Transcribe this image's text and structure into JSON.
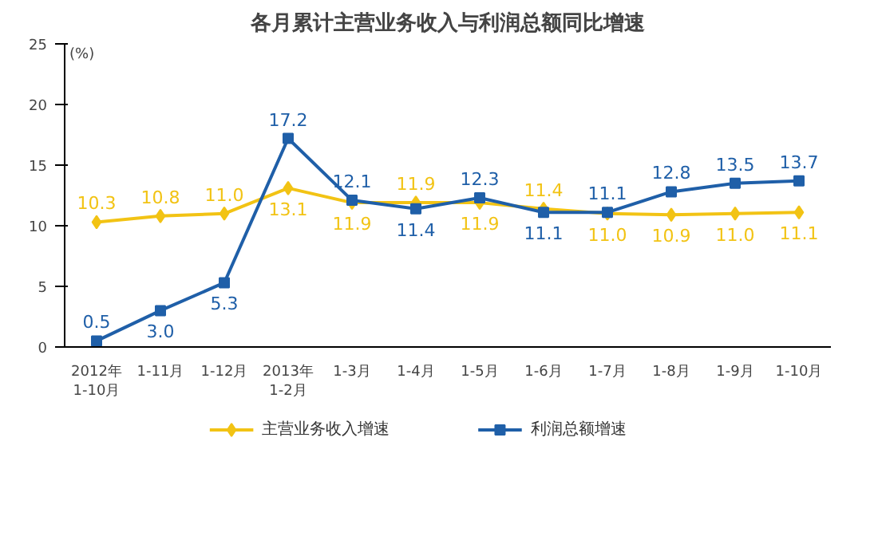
{
  "chart_data": {
    "type": "line",
    "title": "各月累计主营业务收入与利润总额同比增速",
    "ylabel": "(%)",
    "categories": [
      "2012年\n1-10月",
      "1-11月",
      "1-12月",
      "2013年\n1-2月",
      "1-3月",
      "1-4月",
      "1-5月",
      "1-6月",
      "1-7月",
      "1-8月",
      "1-9月",
      "1-10月"
    ],
    "series": [
      {
        "name": "主营业务收入增速",
        "color": "#f2c314",
        "marker": "diamond",
        "values": [
          10.3,
          10.8,
          11.0,
          13.1,
          11.9,
          11.9,
          11.9,
          11.4,
          11.0,
          10.9,
          11.0,
          11.1
        ],
        "value_labels": [
          "10.3",
          "10.8",
          "11.0",
          "13.1",
          "11.9",
          "11.9",
          "11.9",
          "11.4",
          "11.0",
          "10.9",
          "11.0",
          "11.1"
        ]
      },
      {
        "name": "利润总额增速",
        "color": "#1f5fa8",
        "marker": "square",
        "values": [
          0.5,
          3.0,
          5.3,
          17.2,
          12.1,
          11.4,
          12.3,
          11.1,
          11.1,
          12.8,
          13.5,
          13.7
        ],
        "value_labels": [
          "0.5",
          "3.0",
          "5.3",
          "17.2",
          "12.1",
          "11.4",
          "12.3",
          "11.1",
          "11.1",
          "12.8",
          "13.5",
          "13.7"
        ]
      }
    ],
    "ylim": [
      0,
      25
    ],
    "yticks": [
      0,
      5,
      10,
      15,
      20,
      25
    ],
    "grid": false,
    "legend": "bottom"
  }
}
